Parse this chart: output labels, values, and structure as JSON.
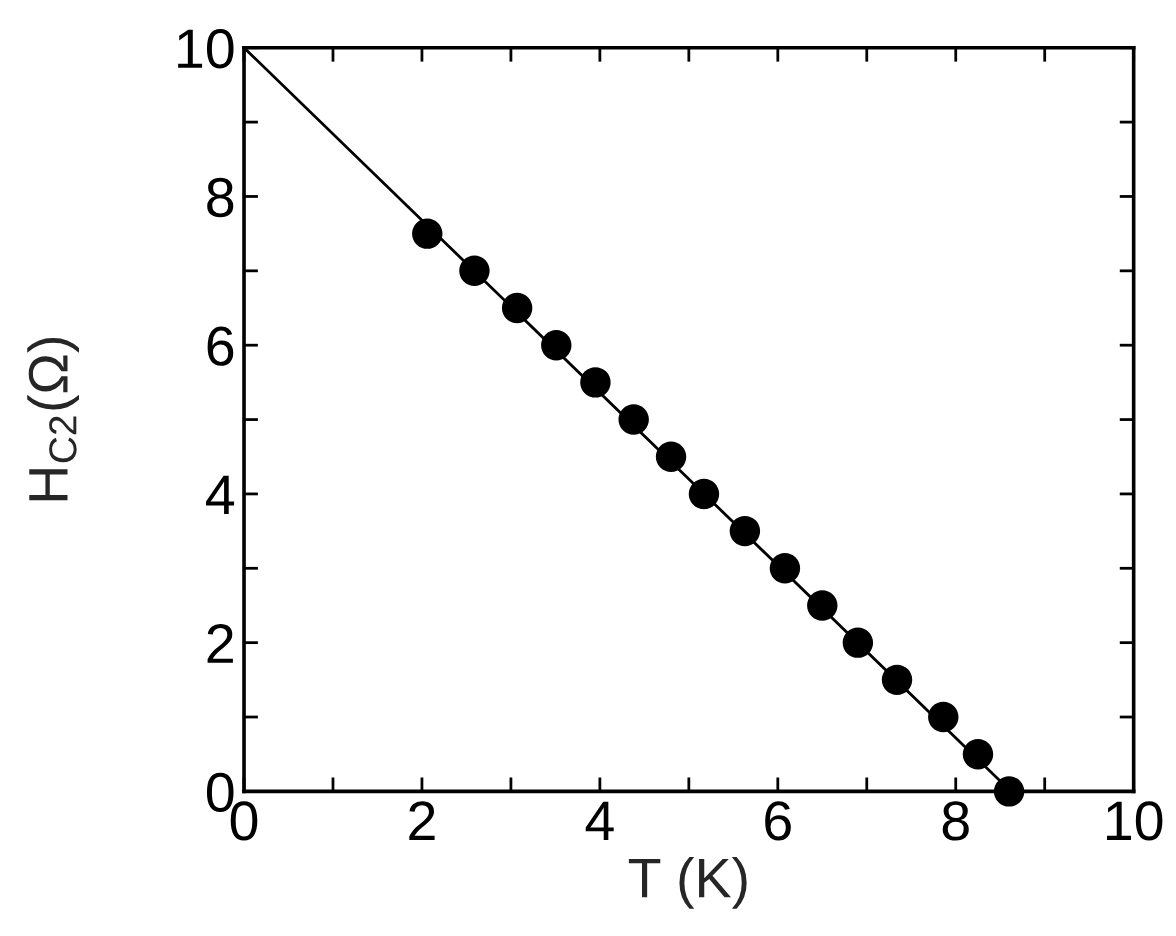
{
  "chart_data": {
    "type": "scatter",
    "xlabel": "T (K)",
    "ylabel": "H$_{C2}$(Ω)",
    "xlim": [
      0,
      10
    ],
    "ylim": [
      0,
      10
    ],
    "xticks": [
      0,
      {
        "value": 1,
        "label": null
      },
      2,
      {
        "value": 3,
        "label": null
      },
      4,
      {
        "value": 5,
        "label": null
      },
      6,
      {
        "value": 7,
        "label": null
      },
      8,
      {
        "value": 9,
        "label": null
      },
      10
    ],
    "yticks": [
      0,
      {
        "value": 1,
        "label": null
      },
      2,
      {
        "value": 3,
        "label": null
      },
      4,
      {
        "value": 5,
        "label": null
      },
      6,
      {
        "value": 7,
        "label": null
      },
      8,
      {
        "value": 9,
        "label": null
      },
      10
    ],
    "grid": false,
    "series": [
      {
        "type": "line",
        "color": "#000000",
        "marker": "none",
        "line_style": "solid",
        "x": [
          0,
          8.62
        ],
        "values": [
          10,
          0
        ]
      },
      {
        "color": "#000000",
        "marker": "circle",
        "x": [
          2.06,
          2.59,
          3.07,
          3.51,
          3.95,
          4.38,
          4.8,
          5.17,
          5.63,
          6.08,
          6.5,
          6.9,
          7.34,
          7.86,
          8.25,
          8.6
        ],
        "values": [
          7.5,
          7.0,
          6.5,
          6.0,
          5.5,
          5.0,
          4.5,
          4.0,
          3.5,
          3.0,
          2.5,
          2.0,
          1.5,
          1.0,
          0.5,
          0
        ]
      }
    ]
  }
}
